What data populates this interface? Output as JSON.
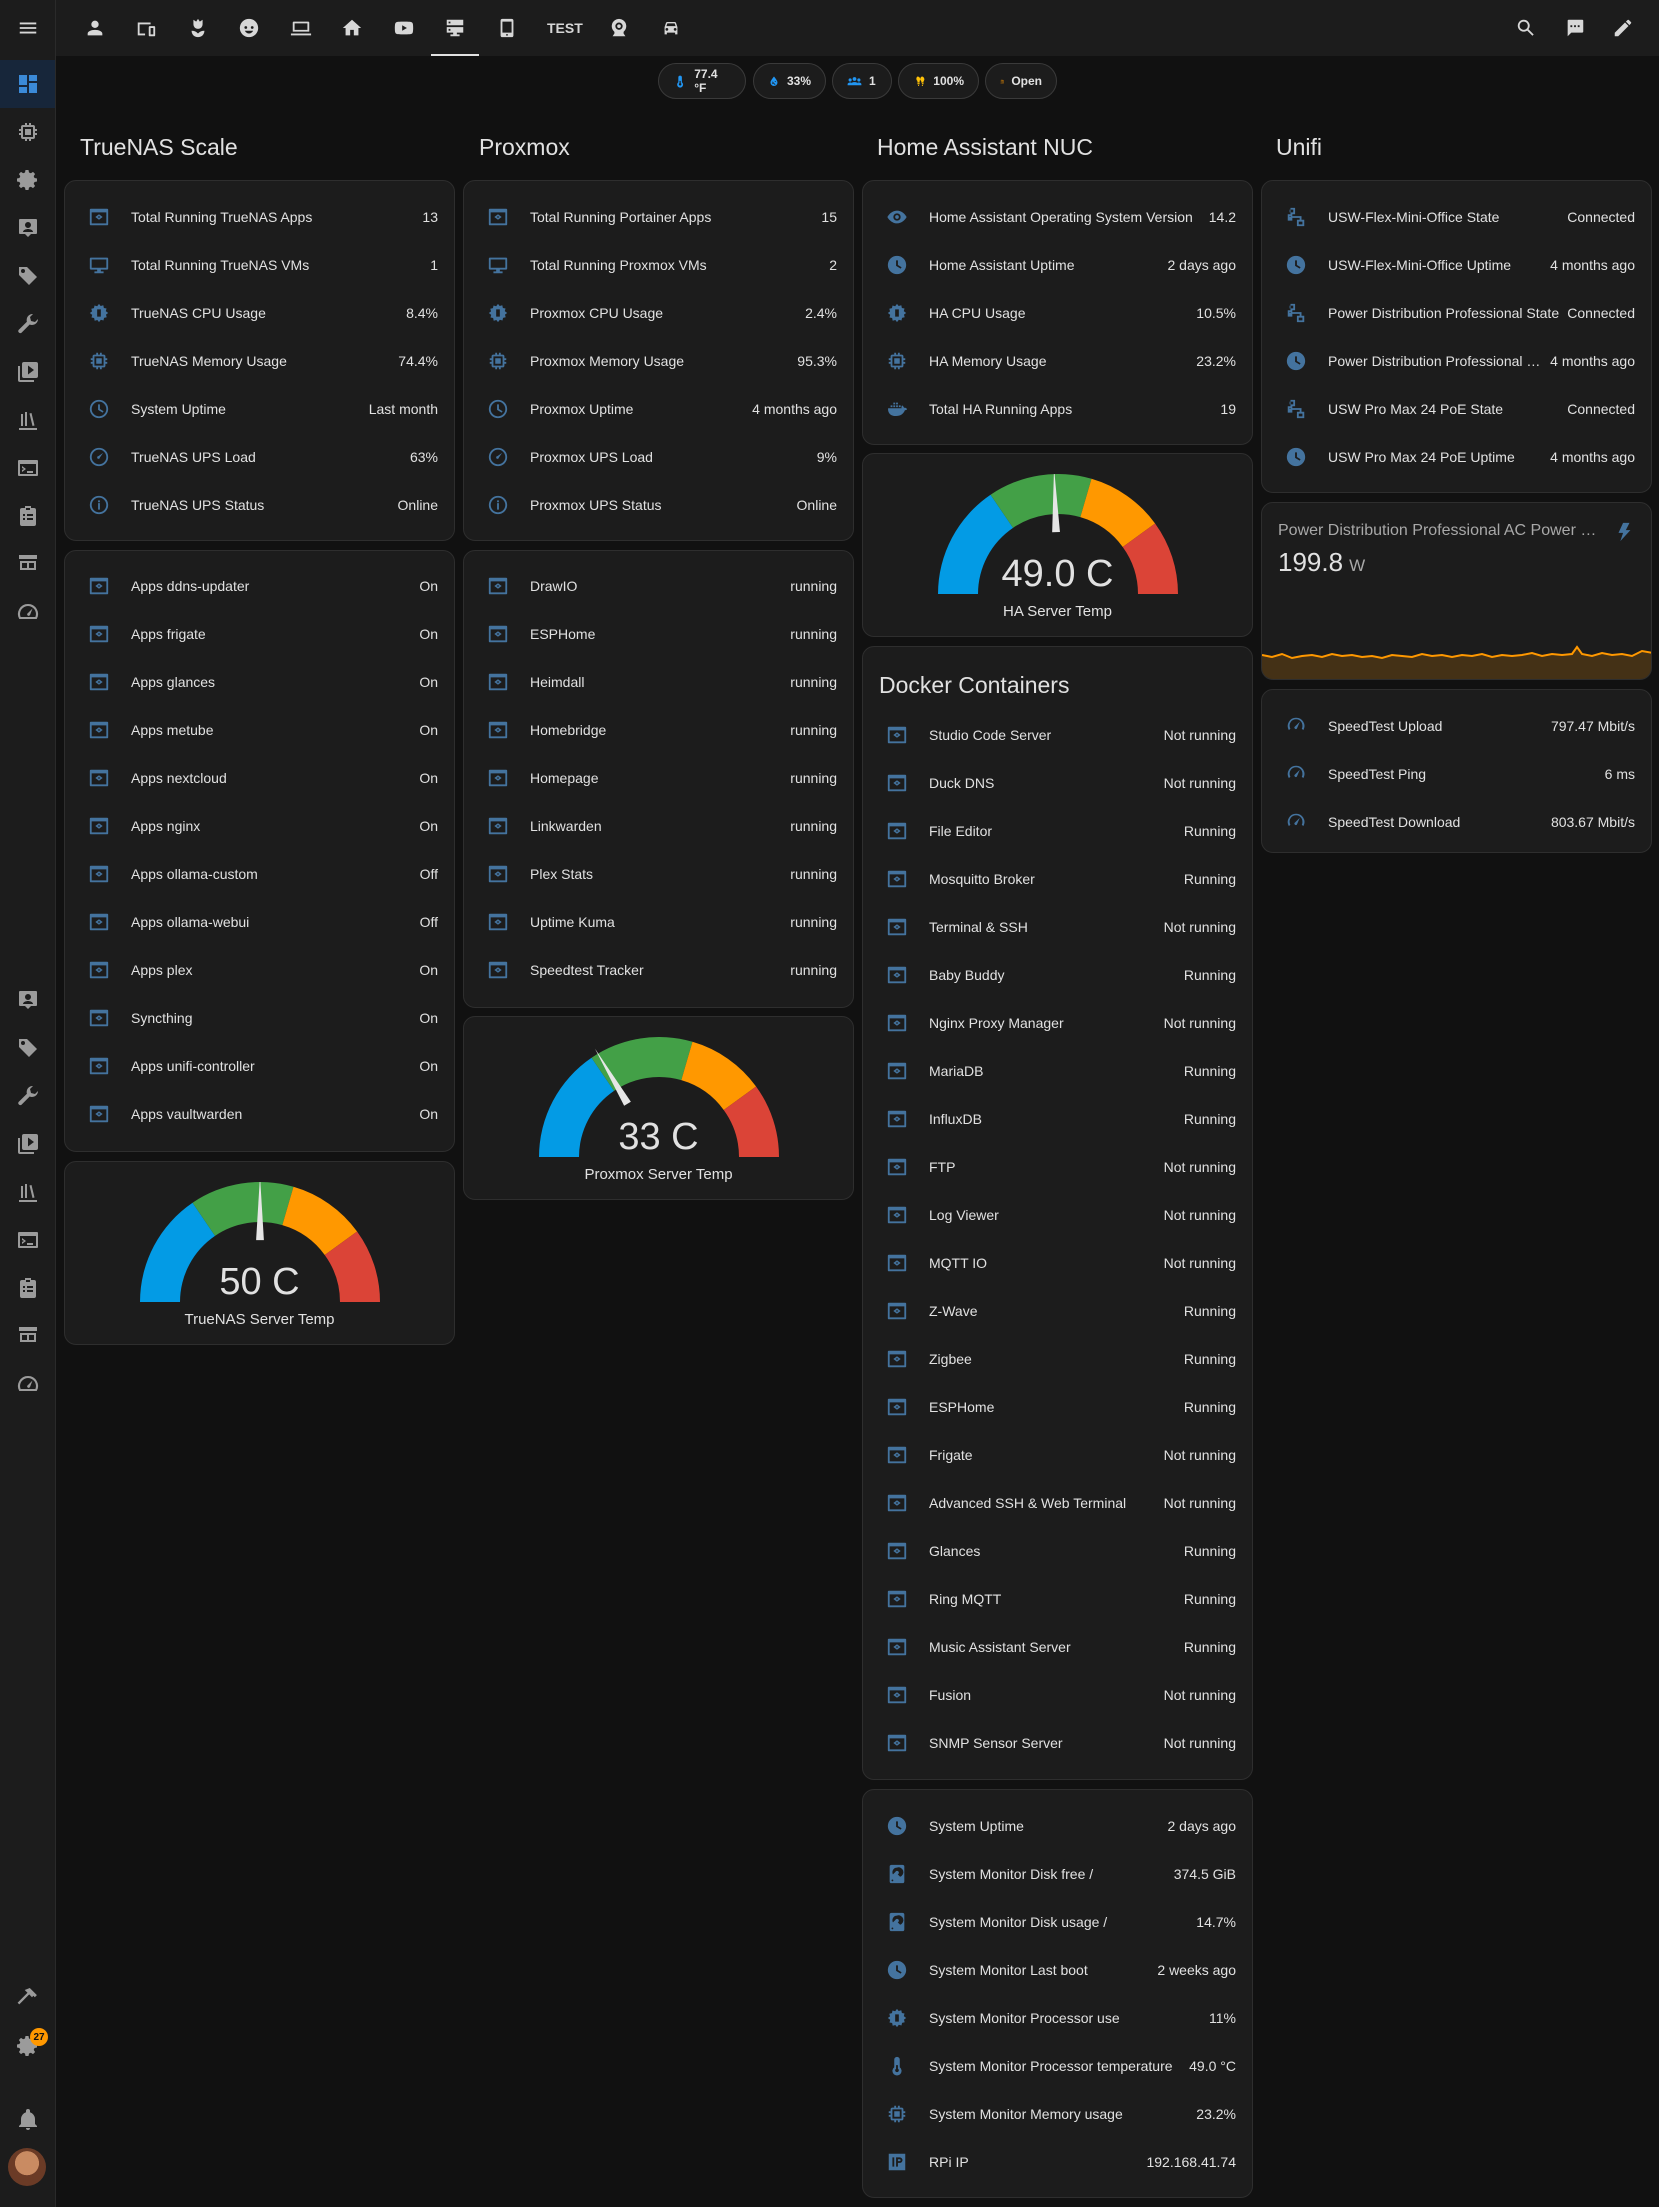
{
  "topbar": {
    "test_label": "TEST"
  },
  "badges": [
    {
      "value": "77.4 °F",
      "icon": "thermometer-icon",
      "color": "#2196f3"
    },
    {
      "value": "33%",
      "icon": "water-percent-icon",
      "color": "#2196f3"
    },
    {
      "value": "1",
      "icon": "account-group-icon",
      "color": "#2196f3"
    },
    {
      "value": "100%",
      "icon": "lightbulb-group-icon",
      "color": "#ffc107"
    },
    {
      "value": "Open",
      "icon": "door-open-icon",
      "color": "#ff9800"
    }
  ],
  "sidebar": {
    "notification_count": "27"
  },
  "columns": {
    "truenas": {
      "title": "TrueNAS Scale",
      "stats": [
        {
          "name": "Total Running TrueNAS Apps",
          "value": "13"
        },
        {
          "name": "Total Running TrueNAS VMs",
          "value": "1"
        },
        {
          "name": "TrueNAS CPU Usage",
          "value": "8.4%"
        },
        {
          "name": "TrueNAS Memory Usage",
          "value": "74.4%"
        },
        {
          "name": "System Uptime",
          "value": "Last month"
        },
        {
          "name": "TrueNAS UPS Load",
          "value": "63%"
        },
        {
          "name": "TrueNAS UPS Status",
          "value": "Online"
        }
      ],
      "apps": [
        {
          "name": "Apps ddns-updater",
          "value": "On"
        },
        {
          "name": "Apps frigate",
          "value": "On"
        },
        {
          "name": "Apps glances",
          "value": "On"
        },
        {
          "name": "Apps metube",
          "value": "On"
        },
        {
          "name": "Apps nextcloud",
          "value": "On"
        },
        {
          "name": "Apps nginx",
          "value": "On"
        },
        {
          "name": "Apps ollama-custom",
          "value": "Off"
        },
        {
          "name": "Apps ollama-webui",
          "value": "Off"
        },
        {
          "name": "Apps plex",
          "value": "On"
        },
        {
          "name": "Syncthing",
          "value": "On"
        },
        {
          "name": "Apps unifi-controller",
          "value": "On"
        },
        {
          "name": "Apps vaultwarden",
          "value": "On"
        }
      ],
      "gauge": {
        "value": "50 C",
        "name": "TrueNAS Server Temp",
        "fraction": 0.5
      }
    },
    "proxmox": {
      "title": "Proxmox",
      "stats": [
        {
          "name": "Total Running Portainer Apps",
          "value": "15"
        },
        {
          "name": "Total Running Proxmox VMs",
          "value": "2"
        },
        {
          "name": "Proxmox CPU Usage",
          "value": "2.4%"
        },
        {
          "name": "Proxmox Memory Usage",
          "value": "95.3%"
        },
        {
          "name": "Proxmox Uptime",
          "value": "4 months ago"
        },
        {
          "name": "Proxmox UPS Load",
          "value": "9%"
        },
        {
          "name": "Proxmox UPS Status",
          "value": "Online"
        }
      ],
      "apps": [
        {
          "name": "DrawIO",
          "value": "running"
        },
        {
          "name": "ESPHome",
          "value": "running"
        },
        {
          "name": "Heimdall",
          "value": "running"
        },
        {
          "name": "Homebridge",
          "value": "running"
        },
        {
          "name": "Homepage",
          "value": "running"
        },
        {
          "name": "Linkwarden",
          "value": "running"
        },
        {
          "name": "Plex Stats",
          "value": "running"
        },
        {
          "name": "Uptime Kuma",
          "value": "running"
        },
        {
          "name": "Speedtest Tracker",
          "value": "running"
        }
      ],
      "gauge": {
        "value": "33 C",
        "name": "Proxmox Server Temp",
        "fraction": 0.33
      }
    },
    "ha_nuc": {
      "title": "Home Assistant NUC",
      "stats": [
        {
          "name": "Home Assistant Operating System Version",
          "value": "14.2"
        },
        {
          "name": "Home Assistant Uptime",
          "value": "2 days ago"
        },
        {
          "name": "HA CPU Usage",
          "value": "10.5%"
        },
        {
          "name": "HA Memory Usage",
          "value": "23.2%"
        },
        {
          "name": "Total HA Running Apps",
          "value": "19"
        }
      ],
      "gauge": {
        "value": "49.0 C",
        "name": "HA Server Temp",
        "fraction": 0.49
      },
      "docker_title": "Docker Containers",
      "docker": [
        {
          "name": "Studio Code Server",
          "value": "Not running"
        },
        {
          "name": "Duck DNS",
          "value": "Not running"
        },
        {
          "name": "File Editor",
          "value": "Running"
        },
        {
          "name": "Mosquitto Broker",
          "value": "Running"
        },
        {
          "name": "Terminal & SSH",
          "value": "Not running"
        },
        {
          "name": "Baby Buddy",
          "value": "Running"
        },
        {
          "name": "Nginx Proxy Manager",
          "value": "Not running"
        },
        {
          "name": "MariaDB",
          "value": "Running"
        },
        {
          "name": "InfluxDB",
          "value": "Running"
        },
        {
          "name": "FTP",
          "value": "Not running"
        },
        {
          "name": "Log Viewer",
          "value": "Not running"
        },
        {
          "name": "MQTT IO",
          "value": "Not running"
        },
        {
          "name": "Z-Wave",
          "value": "Running"
        },
        {
          "name": "Zigbee",
          "value": "Running"
        },
        {
          "name": "ESPHome",
          "value": "Running"
        },
        {
          "name": "Frigate",
          "value": "Not running"
        },
        {
          "name": "Advanced SSH & Web Terminal",
          "value": "Not running"
        },
        {
          "name": "Glances",
          "value": "Running"
        },
        {
          "name": "Ring MQTT",
          "value": "Running"
        },
        {
          "name": "Music Assistant Server",
          "value": "Running"
        },
        {
          "name": "Fusion",
          "value": "Not running"
        },
        {
          "name": "SNMP Sensor Server",
          "value": "Not running"
        }
      ],
      "system": [
        {
          "name": "System Uptime",
          "value": "2 days ago"
        },
        {
          "name": "System Monitor Disk free /",
          "value": "374.5 GiB"
        },
        {
          "name": "System Monitor Disk usage /",
          "value": "14.7%"
        },
        {
          "name": "System Monitor Last boot",
          "value": "2 weeks ago"
        },
        {
          "name": "System Monitor Processor use",
          "value": "11%"
        },
        {
          "name": "System Monitor Processor temperature",
          "value": "49.0 °C"
        },
        {
          "name": "System Monitor Memory usage",
          "value": "23.2%"
        },
        {
          "name": "RPi IP",
          "value": "192.168.41.74"
        }
      ]
    },
    "unifi": {
      "title": "Unifi",
      "stats": [
        {
          "name": "USW-Flex-Mini-Office State",
          "value": "Connected"
        },
        {
          "name": "USW-Flex-Mini-Office Uptime",
          "value": "4 months ago"
        },
        {
          "name": "Power Distribution Professional State",
          "value": "Connected"
        },
        {
          "name": "Power Distribution Professional Uptime",
          "value": "4 months ago"
        },
        {
          "name": "USW Pro Max 24 PoE State",
          "value": "Connected"
        },
        {
          "name": "USW Pro Max 24 PoE Uptime",
          "value": "4 months ago"
        }
      ],
      "power": {
        "name": "Power Distribution Professional AC Power Consumption",
        "value": "199.8",
        "unit": "W",
        "line_color": "#ff9800"
      },
      "speedtest": [
        {
          "name": "SpeedTest Upload",
          "value": "797.47 Mbit/s"
        },
        {
          "name": "SpeedTest Ping",
          "value": "6 ms"
        },
        {
          "name": "SpeedTest Download",
          "value": "803.67 Mbit/s"
        }
      ]
    }
  }
}
